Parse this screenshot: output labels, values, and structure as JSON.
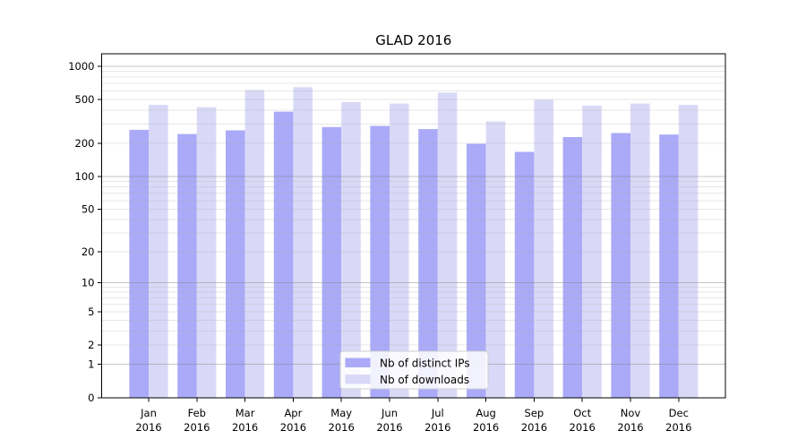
{
  "chart_data": {
    "type": "bar",
    "title": "GLAD 2016",
    "x_tick_months": [
      "Jan",
      "Feb",
      "Mar",
      "Apr",
      "May",
      "Jun",
      "Jul",
      "Aug",
      "Sep",
      "Oct",
      "Nov",
      "Dec"
    ],
    "x_tick_year": "2016",
    "categories": [
      "Jan 2016",
      "Feb 2016",
      "Mar 2016",
      "Apr 2016",
      "May 2016",
      "Jun 2016",
      "Jul 2016",
      "Aug 2016",
      "Sep 2016",
      "Oct 2016",
      "Nov 2016",
      "Dec 2016"
    ],
    "series": [
      {
        "name": "Nb of distinct IPs",
        "color": "#aaaaf8",
        "values": [
          265,
          243,
          262,
          388,
          281,
          288,
          269,
          198,
          167,
          228,
          248,
          240
        ]
      },
      {
        "name": "Nb of downloads",
        "color": "#d9d9f7",
        "values": [
          446,
          426,
          608,
          647,
          474,
          459,
          578,
          316,
          499,
          441,
          459,
          446
        ]
      }
    ],
    "y_ticks": [
      0,
      1,
      2,
      5,
      10,
      20,
      50,
      100,
      200,
      500,
      1000
    ],
    "y_scale": "log10(value+1)",
    "ylim": [
      0,
      1300
    ],
    "grid": true,
    "legend": {
      "position": "lower center",
      "entries": [
        "Nb of distinct IPs",
        "Nb of downloads"
      ]
    },
    "colors": {
      "background": "#ffffff",
      "axis": "#000000",
      "major_grid": "rgba(128,128,128,0.45)",
      "minor_grid": "rgba(176,176,176,0.30)",
      "legend_border": "#cfcfcf",
      "legend_background": "rgba(255,255,255,0.85)"
    }
  }
}
